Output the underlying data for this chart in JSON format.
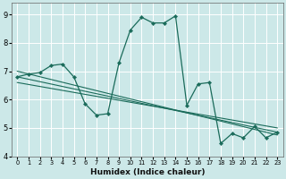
{
  "xlabel": "Humidex (Indice chaleur)",
  "bg_color": "#cce8e8",
  "line_color": "#1a6b5a",
  "grid_color": "#ffffff",
  "xlim": [
    -0.5,
    23.5
  ],
  "ylim": [
    4.0,
    9.4
  ],
  "xticks": [
    0,
    1,
    2,
    3,
    4,
    5,
    6,
    7,
    8,
    9,
    10,
    11,
    12,
    13,
    14,
    15,
    16,
    17,
    18,
    19,
    20,
    21,
    22,
    23
  ],
  "yticks": [
    4,
    5,
    6,
    7,
    8,
    9
  ],
  "main_line": {
    "x": [
      0,
      1,
      2,
      3,
      4,
      5,
      6,
      7,
      8,
      9,
      10,
      11,
      12,
      13,
      14,
      15,
      16,
      17,
      18,
      19,
      20,
      21,
      22,
      23
    ],
    "y": [
      6.8,
      6.9,
      6.95,
      7.2,
      7.25,
      6.8,
      5.85,
      5.45,
      5.5,
      7.3,
      8.45,
      8.9,
      8.7,
      8.7,
      8.95,
      5.8,
      6.55,
      6.6,
      4.45,
      4.8,
      4.65,
      5.05,
      4.65,
      4.85
    ]
  },
  "trend_lines": [
    {
      "x": [
        0,
        23
      ],
      "y": [
        6.8,
        4.85
      ]
    },
    {
      "x": [
        0,
        23
      ],
      "y": [
        7.0,
        4.75
      ]
    },
    {
      "x": [
        0,
        23
      ],
      "y": [
        6.6,
        5.0
      ]
    }
  ]
}
